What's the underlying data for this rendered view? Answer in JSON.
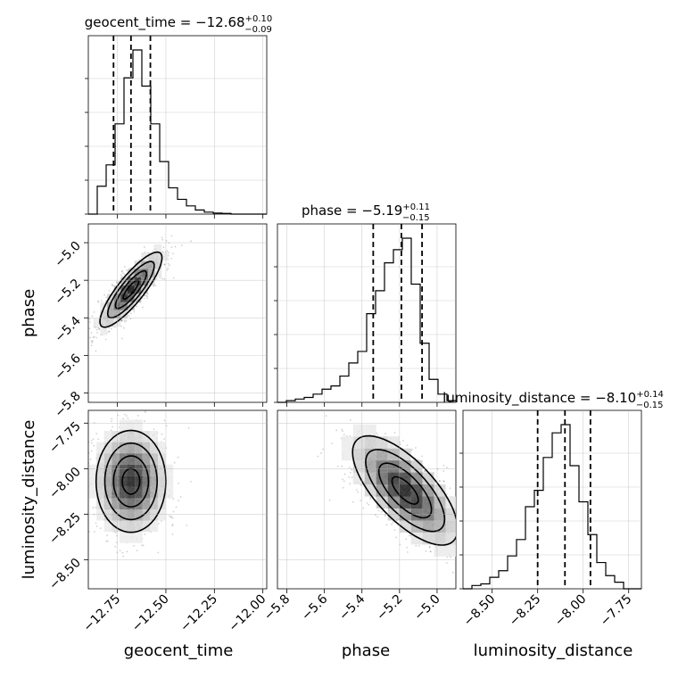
{
  "chart_data": {
    "type": "corner",
    "parameters": [
      {
        "name": "geocent_time",
        "lim": [
          -12.9,
          -11.98
        ],
        "ticks": [
          -12.75,
          -12.5,
          -12.25,
          -12.0
        ],
        "tick_labels": [
          "−12.75",
          "−12.50",
          "−12.25",
          "−12.00"
        ],
        "quantiles": [
          -12.77,
          -12.68,
          -12.58
        ],
        "median": "−12.68",
        "plus": "+0.10",
        "minus": "−0.09"
      },
      {
        "name": "phase",
        "lim": [
          -5.85,
          -4.9
        ],
        "ticks": [
          -5.8,
          -5.6,
          -5.4,
          -5.2,
          -5.0
        ],
        "tick_labels": [
          "−5.8",
          "−5.6",
          "−5.4",
          "−5.2",
          "−5.0"
        ],
        "quantiles": [
          -5.34,
          -5.19,
          -5.08
        ],
        "median": "−5.19",
        "plus": "+0.11",
        "minus": "−0.15"
      },
      {
        "name": "luminosity_distance",
        "lim": [
          -8.66,
          -7.68
        ],
        "ticks": [
          -8.5,
          -8.25,
          -8.0,
          -7.75
        ],
        "tick_labels": [
          "−8.50",
          "−8.25",
          "−8.00",
          "−7.75"
        ],
        "quantiles": [
          -8.25,
          -8.1,
          -7.96
        ],
        "median": "−8.10",
        "plus": "+0.14",
        "minus": "−0.15"
      }
    ],
    "histograms": [
      {
        "param": "geocent_time",
        "bins": 20,
        "range": [
          -12.9,
          -11.98
        ],
        "counts": [
          0.0,
          0.17,
          0.3,
          0.55,
          0.83,
          1.0,
          0.78,
          0.55,
          0.32,
          0.16,
          0.09,
          0.05,
          0.025,
          0.012,
          0.006,
          0.004,
          0.0,
          0.0,
          0.0,
          0.0
        ]
      },
      {
        "param": "phase",
        "bins": 20,
        "range": [
          -5.85,
          -4.9
        ],
        "counts": [
          0.0,
          0.01,
          0.02,
          0.03,
          0.05,
          0.08,
          0.1,
          0.16,
          0.24,
          0.31,
          0.54,
          0.68,
          0.85,
          0.93,
          1.0,
          0.72,
          0.36,
          0.14,
          0.05,
          0.01
        ]
      },
      {
        "param": "luminosity_distance",
        "bins": 20,
        "range": [
          -8.66,
          -7.68
        ],
        "counts": [
          0.0,
          0.02,
          0.03,
          0.07,
          0.11,
          0.2,
          0.3,
          0.5,
          0.6,
          0.8,
          0.95,
          1.0,
          0.75,
          0.53,
          0.33,
          0.16,
          0.08,
          0.04,
          0.0,
          0.0
        ]
      }
    ],
    "joint_2d": [
      {
        "x": "geocent_time",
        "y": "phase",
        "peak": [
          -12.68,
          -5.25
        ],
        "sigma_x": 0.08,
        "sigma_y": 0.1,
        "correlation": 0.85
      },
      {
        "x": "geocent_time",
        "y": "luminosity_distance",
        "peak": [
          -12.68,
          -8.07
        ],
        "sigma_x": 0.09,
        "sigma_y": 0.14,
        "correlation": 0.0
      },
      {
        "x": "phase",
        "y": "luminosity_distance",
        "peak": [
          -5.17,
          -8.12
        ],
        "sigma_x": 0.14,
        "sigma_y": 0.15,
        "correlation": -0.7
      }
    ],
    "grid": true
  }
}
